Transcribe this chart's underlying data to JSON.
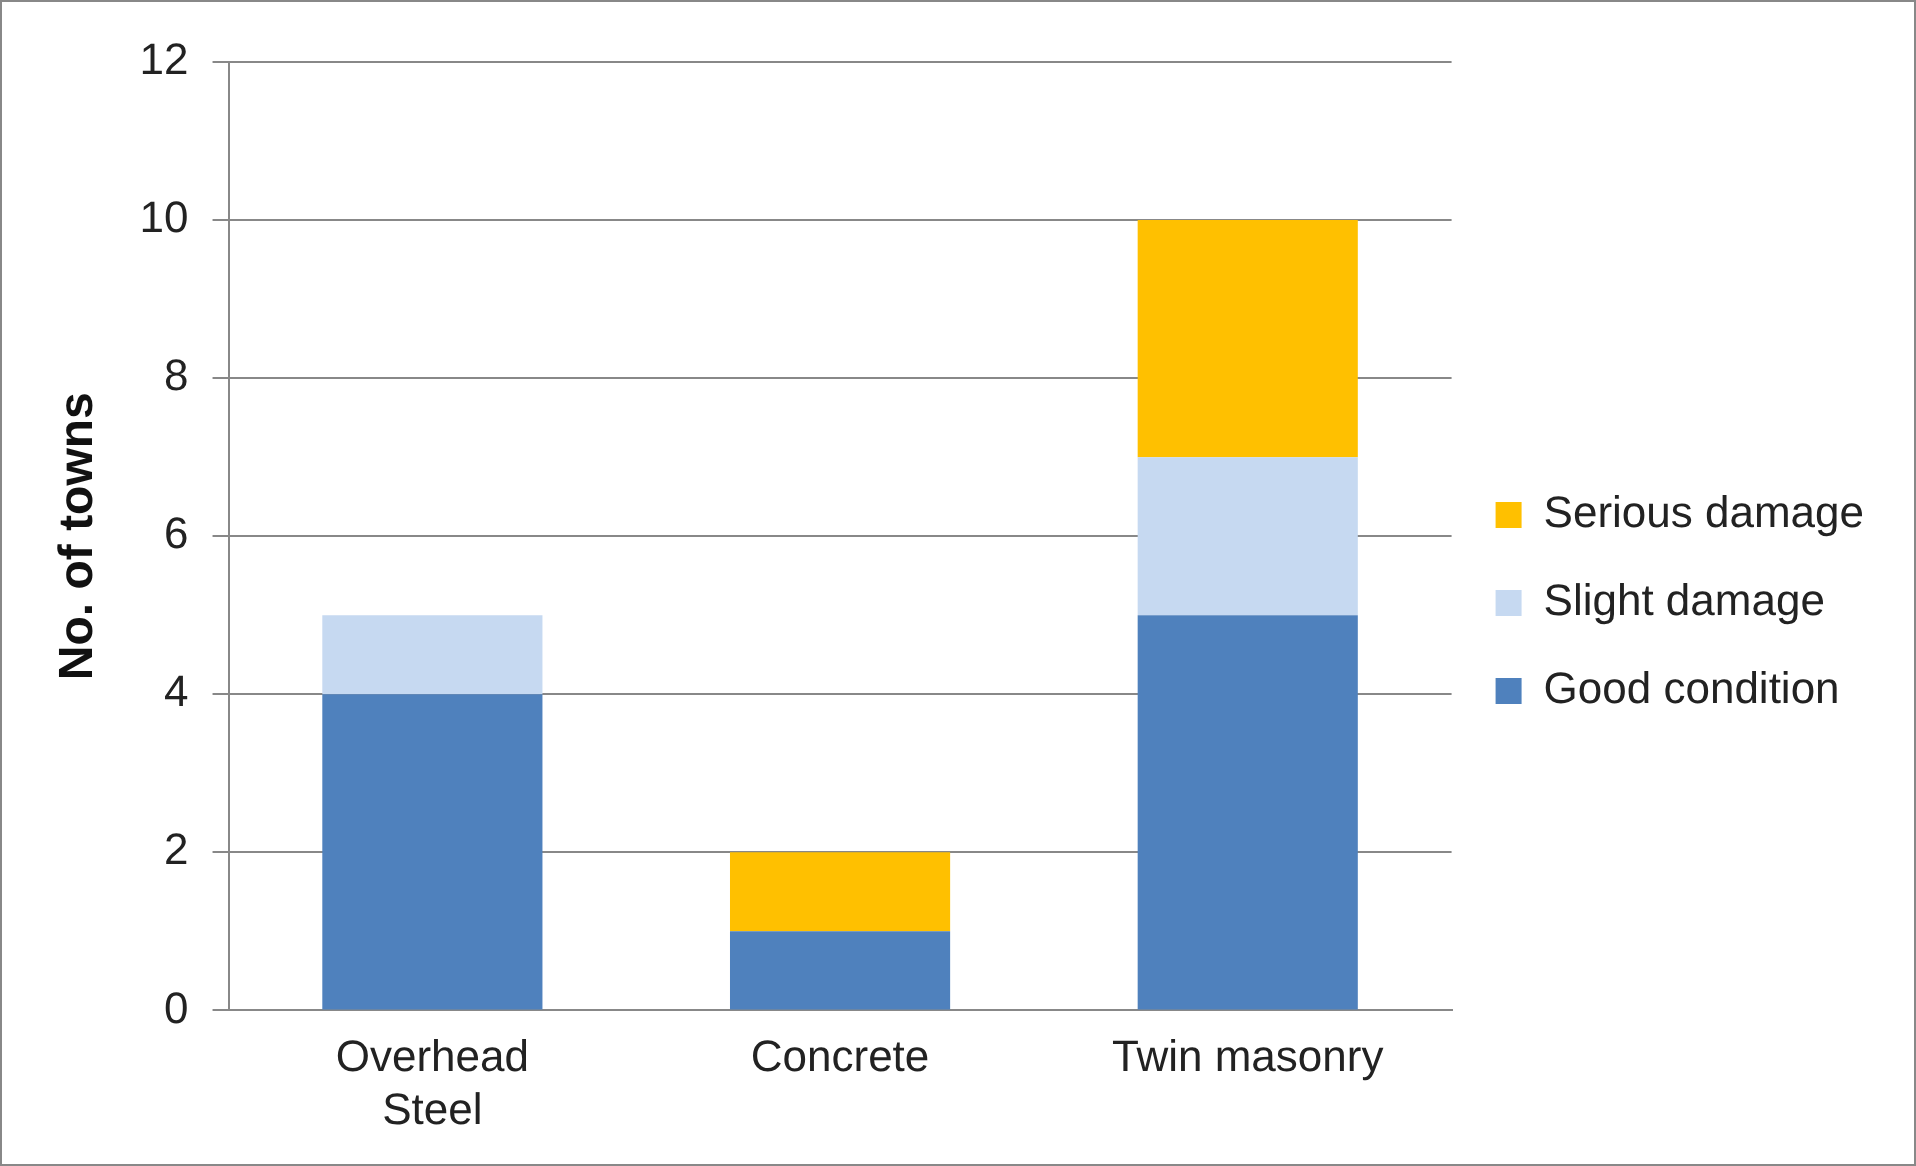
{
  "chart_data": {
    "type": "bar",
    "stacked": true,
    "ylabel": "No. of towns",
    "categories": [
      "Overhead Steel",
      "Concrete",
      "Twin masonry"
    ],
    "series": [
      {
        "name": "Good condition",
        "color": "#4f81bd",
        "values": [
          4,
          1,
          5
        ]
      },
      {
        "name": "Slight damage",
        "color": "#c6d9f1",
        "values": [
          1,
          0,
          2
        ]
      },
      {
        "name": "Serious damage",
        "color": "#ffc000",
        "values": [
          0,
          1,
          3
        ]
      }
    ],
    "ylim": [
      0,
      12
    ],
    "yticks": [
      0,
      2,
      4,
      6,
      8,
      10,
      12
    ],
    "grid": "y",
    "legend": "right"
  }
}
